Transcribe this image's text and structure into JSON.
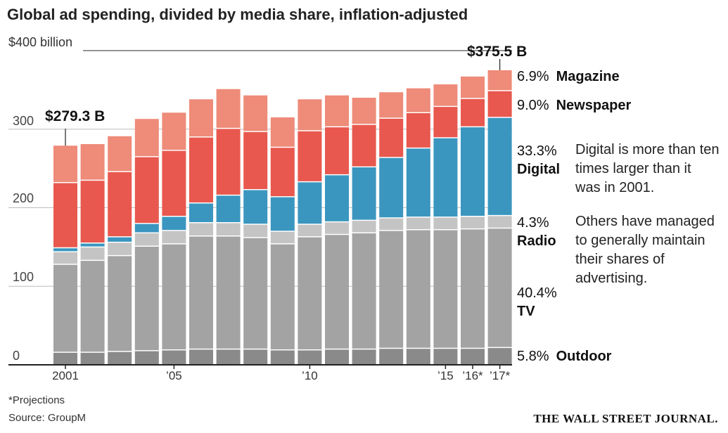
{
  "chart_data": {
    "type": "stacked-bar",
    "title": "Global ad spending, divided by media share, inflation-adjusted",
    "y_unit_label": "$400 billion",
    "ylim": [
      0,
      400
    ],
    "yticks": [
      "300",
      "200",
      "100",
      "0"
    ],
    "ytick_values": [
      300,
      200,
      100,
      0
    ],
    "categories": [
      "2001",
      "2002",
      "2003",
      "2004",
      "2005",
      "2006",
      "2007",
      "2008",
      "2009",
      "2010",
      "2011",
      "2012",
      "2013",
      "2014",
      "2015",
      "2016*",
      "2017*"
    ],
    "xtick_labels": [
      {
        "index": 0,
        "label": "2001"
      },
      {
        "index": 4,
        "label": "’05"
      },
      {
        "index": 9,
        "label": "’10"
      },
      {
        "index": 14,
        "label": "’15"
      },
      {
        "index": 15,
        "label": "’16*"
      },
      {
        "index": 16,
        "label": "’17*"
      }
    ],
    "series": [
      {
        "name": "Outdoor",
        "color": "#8a8a8a",
        "values": [
          16,
          16,
          17,
          18,
          19,
          20,
          20,
          20,
          19,
          19,
          20,
          20,
          21,
          21,
          21,
          21,
          22
        ]
      },
      {
        "name": "TV",
        "color": "#a3a3a3",
        "values": [
          112,
          117,
          122,
          133,
          135,
          144,
          144,
          142,
          135,
          144,
          146,
          148,
          150,
          151,
          151,
          152,
          152
        ]
      },
      {
        "name": "Radio",
        "color": "#c4c4c4",
        "values": [
          16,
          17,
          17,
          17,
          17,
          17,
          17,
          17,
          16,
          16,
          16,
          16,
          16,
          16,
          16,
          16,
          16
        ]
      },
      {
        "name": "Digital",
        "color": "#3a96bf",
        "values": [
          5,
          5,
          7,
          12,
          18,
          25,
          35,
          44,
          44,
          54,
          60,
          68,
          77,
          88,
          101,
          114,
          125
        ]
      },
      {
        "name": "Newspaper",
        "color": "#e8584e",
        "values": [
          83,
          80,
          83,
          85,
          84,
          84,
          85,
          74,
          63,
          65,
          61,
          54,
          50,
          45,
          40,
          36,
          34
        ]
      },
      {
        "name": "Magazine",
        "color": "#ee8b79",
        "values": [
          47,
          46,
          45,
          48,
          48,
          48,
          50,
          46,
          38,
          40,
          40,
          34,
          33,
          31,
          28,
          28,
          26
        ]
      }
    ],
    "callouts": [
      {
        "index": 0,
        "label": "$279.3 B"
      },
      {
        "index": 16,
        "label": "$375.5 B"
      }
    ],
    "legend": [
      {
        "pct": "6.9%",
        "name": "Magazine"
      },
      {
        "pct": "9.0%",
        "name": "Newspaper"
      },
      {
        "pct": "33.3%",
        "name": "Digital"
      },
      {
        "pct": "4.3%",
        "name": "Radio"
      },
      {
        "pct": "40.4%",
        "name": "TV"
      },
      {
        "pct": "5.8%",
        "name": "Outdoor"
      }
    ],
    "annotations": [
      "Digital is more than ten times larger than it was in 2001.",
      "Others have managed to generally maintain their shares of advertising."
    ]
  },
  "footer": {
    "note": "*Projections",
    "source": "Source: GroupM",
    "publisher": "THE WALL STREET JOURNAL."
  }
}
